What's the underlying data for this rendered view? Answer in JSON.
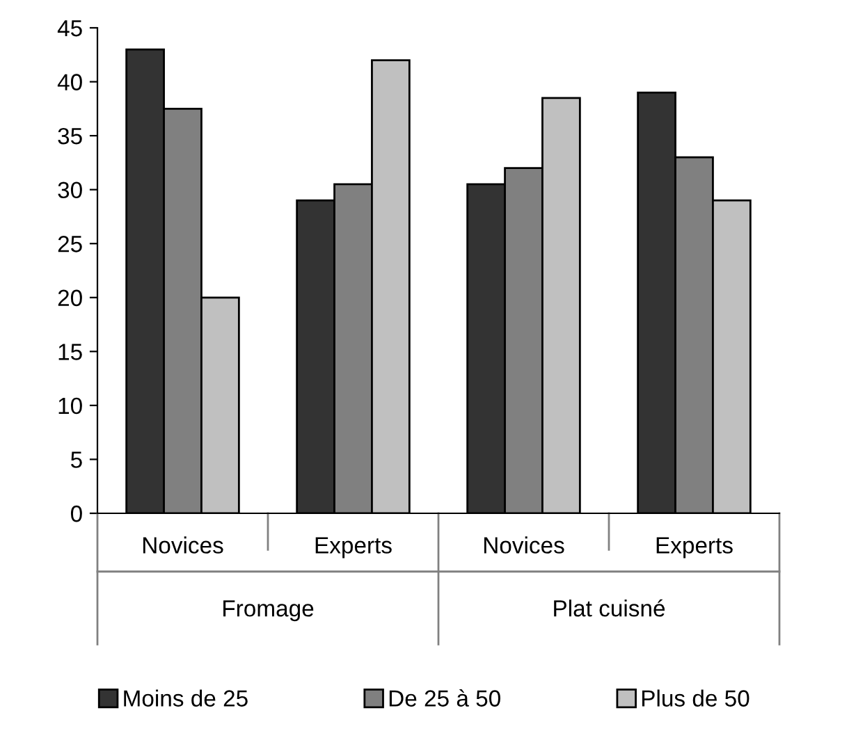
{
  "chart_data": {
    "type": "bar",
    "categories": [
      "Novices",
      "Experts",
      "Novices",
      "Experts"
    ],
    "series": [
      {
        "name": "Moins de 25",
        "color": "#333333",
        "values": [
          43,
          29,
          30.5,
          39
        ]
      },
      {
        "name": "De 25 à 50",
        "color": "#808080",
        "values": [
          37.5,
          30.5,
          32,
          33
        ]
      },
      {
        "name": "Plus de 50",
        "color": "#c0c0c0",
        "values": [
          20,
          42,
          38.5,
          29
        ]
      }
    ],
    "annotations": [
      "Fromage",
      "Plat cuisné"
    ],
    "ylim": [
      0,
      45
    ],
    "yticks": [
      0,
      5,
      10,
      15,
      20,
      25,
      30,
      35,
      40,
      45
    ],
    "grid": false,
    "legend": "bottom"
  }
}
